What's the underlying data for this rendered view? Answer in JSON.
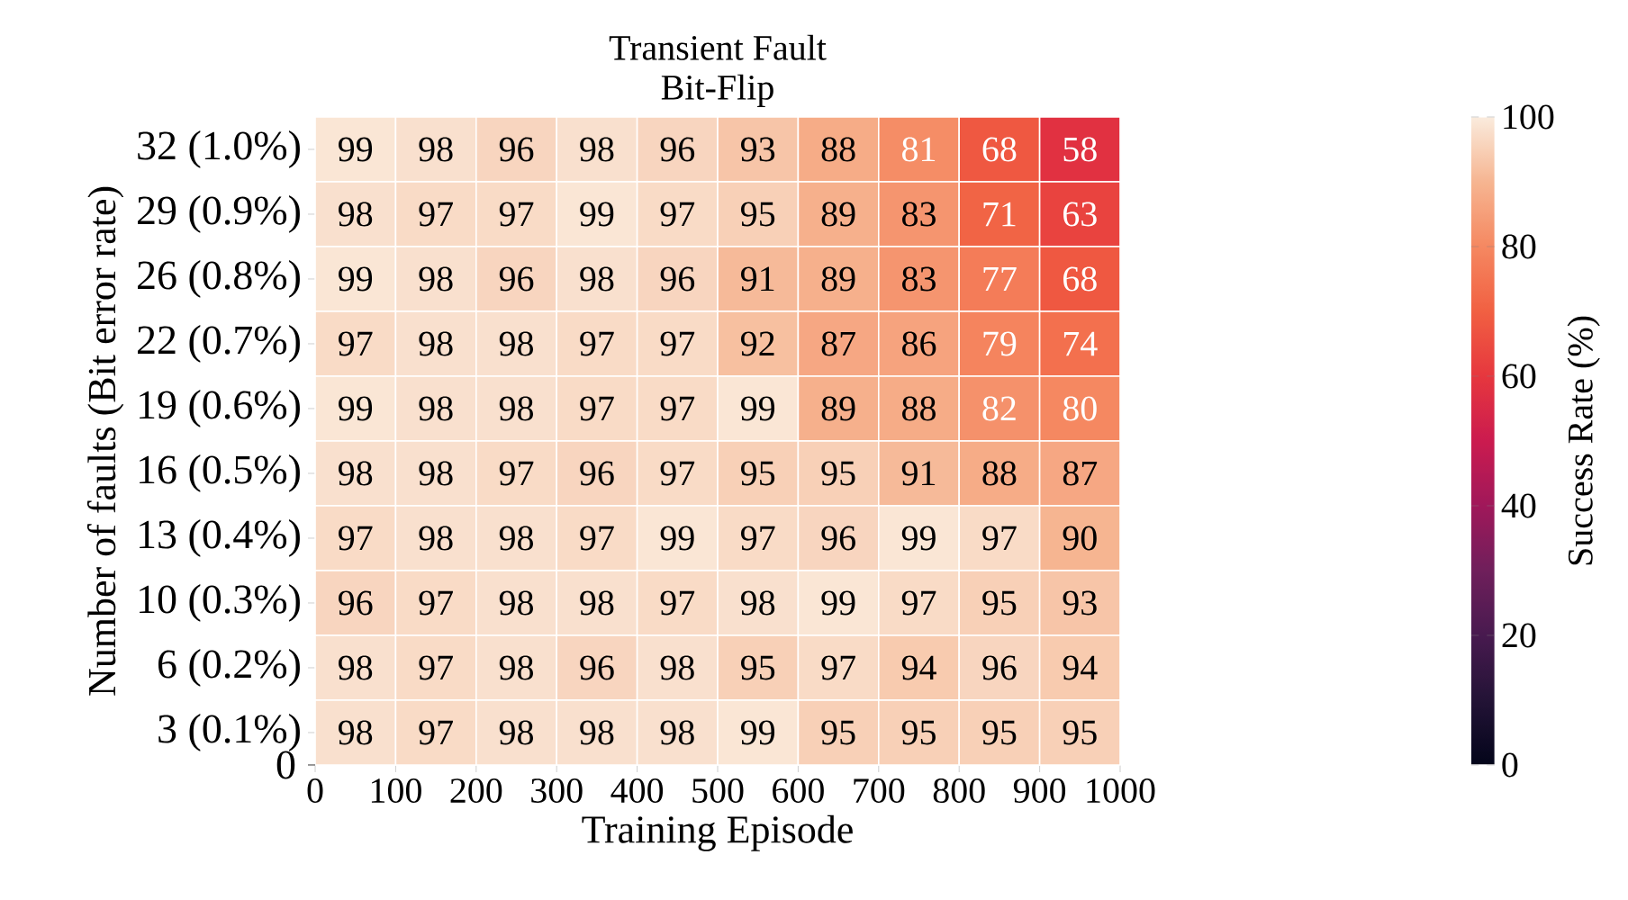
{
  "chart_data": {
    "type": "heatmap",
    "title": "Transient Fault",
    "subtitle": "Bit-Flip",
    "xlabel": "Training Episode",
    "ylabel": "Number of faults (Bit error rate)",
    "clabel": "Success Rate (%)",
    "x": [
      50,
      150,
      250,
      350,
      450,
      550,
      650,
      750,
      850,
      950
    ],
    "xlim": [
      0,
      1000
    ],
    "xticks": [
      0,
      100,
      200,
      300,
      400,
      500,
      600,
      700,
      800,
      900,
      1000
    ],
    "y_categories": [
      "32 (1.0%)",
      "29 (0.9%)",
      "26 (0.8%)",
      "22 (0.7%)",
      "19 (0.6%)",
      "16 (0.5%)",
      "13 (0.4%)",
      "10 (0.3%)",
      "6 (0.2%)",
      "3 (0.1%)"
    ],
    "cells": [
      [
        99,
        98,
        96,
        98,
        96,
        93,
        88,
        81,
        68,
        58
      ],
      [
        98,
        97,
        97,
        99,
        97,
        95,
        89,
        83,
        71,
        63
      ],
      [
        99,
        98,
        96,
        98,
        96,
        91,
        89,
        83,
        77,
        68
      ],
      [
        97,
        98,
        98,
        97,
        97,
        92,
        87,
        86,
        79,
        74
      ],
      [
        99,
        98,
        98,
        97,
        97,
        99,
        89,
        88,
        82,
        80
      ],
      [
        98,
        98,
        97,
        96,
        97,
        95,
        95,
        91,
        88,
        87
      ],
      [
        97,
        98,
        98,
        97,
        99,
        97,
        96,
        99,
        97,
        90
      ],
      [
        96,
        97,
        98,
        98,
        97,
        98,
        99,
        97,
        95,
        93
      ],
      [
        98,
        97,
        98,
        96,
        98,
        95,
        97,
        94,
        96,
        94
      ],
      [
        98,
        97,
        98,
        98,
        98,
        99,
        95,
        95,
        95,
        95
      ]
    ],
    "clim": [
      0,
      100
    ],
    "cticks": [
      0,
      20,
      40,
      60,
      80,
      100
    ],
    "data_labels": true,
    "annotations": [
      "0"
    ]
  }
}
